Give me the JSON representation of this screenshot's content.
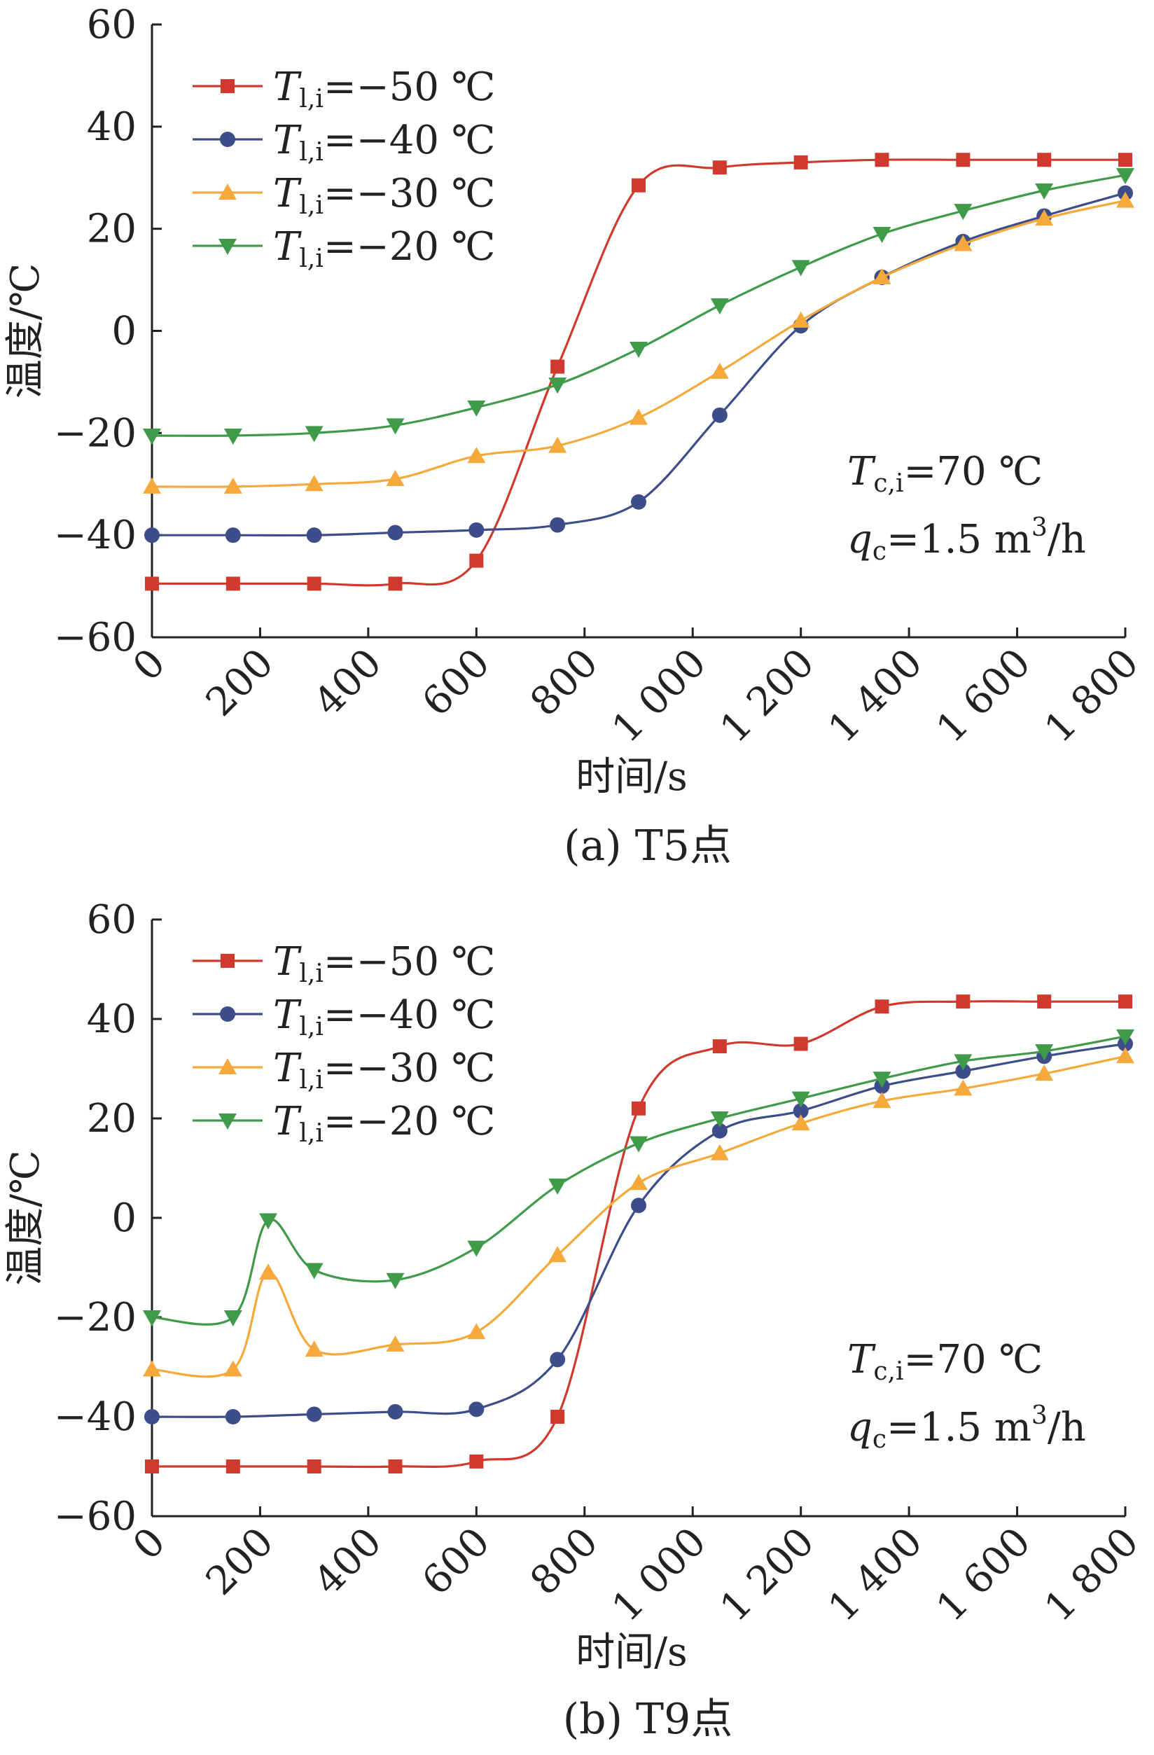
{
  "chart_data": [
    {
      "type": "line",
      "caption": "(a)  T5点",
      "xlabel": "时间/s",
      "ylabel": "温度/℃",
      "xlim": [
        0,
        1800
      ],
      "ylim": [
        -60,
        60
      ],
      "xticks": [
        0,
        200,
        400,
        600,
        800,
        1000,
        1200,
        1400,
        1600,
        1800
      ],
      "xtick_labels": [
        "0",
        "200",
        "400",
        "600",
        "800",
        "1 000",
        "1 200",
        "1 400",
        "1 600",
        "1 800"
      ],
      "yticks": [
        -60,
        -40,
        -20,
        0,
        20,
        40,
        60
      ],
      "ytick_labels": [
        "−60",
        "−40",
        "−20",
        "0",
        "20",
        "40",
        "60"
      ],
      "grid": false,
      "legend_position": "top-left",
      "annotations": [
        {
          "var": "T",
          "sub": "c,i",
          "text": "=70 ℃"
        },
        {
          "var": "q",
          "sub": "c",
          "text": "=1.5 m",
          "sup": "3",
          "tail": "/h"
        }
      ],
      "series": [
        {
          "var": "T",
          "sub": "l,i",
          "name": "=−50 ℃",
          "color": "#d03a2e",
          "marker": "square",
          "x": [
            0,
            150,
            300,
            450,
            600,
            750,
            900,
            1050,
            1200,
            1350,
            1500,
            1650,
            1800
          ],
          "y": [
            -49.5,
            -49.5,
            -49.5,
            -49.5,
            -45,
            -7,
            28.5,
            32,
            33,
            33.5,
            33.5,
            33.5,
            33.5
          ]
        },
        {
          "var": "T",
          "sub": "l,i",
          "name": "=−40 ℃",
          "color": "#3c4d8a",
          "marker": "circle",
          "x": [
            0,
            150,
            300,
            450,
            600,
            750,
            900,
            1050,
            1200,
            1350,
            1500,
            1650,
            1800
          ],
          "y": [
            -40,
            -40,
            -40,
            -39.5,
            -39,
            -38,
            -33.5,
            -16.5,
            1,
            10.5,
            17.5,
            22.5,
            27
          ]
        },
        {
          "var": "T",
          "sub": "l,i",
          "name": "=−30 ℃",
          "color": "#f4a93a",
          "marker": "triangle-up",
          "x": [
            0,
            150,
            300,
            450,
            600,
            750,
            900,
            1050,
            1200,
            1350,
            1500,
            1650,
            1800
          ],
          "y": [
            -30.5,
            -30.5,
            -30,
            -29,
            -24.5,
            -22.5,
            -17,
            -8,
            2,
            10.5,
            17,
            22,
            25.5
          ]
        },
        {
          "var": "T",
          "sub": "l,i",
          "name": "=−20 ℃",
          "color": "#3f9a4a",
          "marker": "triangle-down",
          "x": [
            0,
            150,
            300,
            450,
            600,
            750,
            900,
            1050,
            1200,
            1350,
            1500,
            1650,
            1800
          ],
          "y": [
            -20.5,
            -20.5,
            -20,
            -18.5,
            -15,
            -10.5,
            -3.5,
            5,
            12.5,
            19,
            23.5,
            27.5,
            30.5
          ]
        }
      ]
    },
    {
      "type": "line",
      "caption": "(b)  T9点",
      "xlabel": "时间/s",
      "ylabel": "温度/℃",
      "xlim": [
        0,
        1800
      ],
      "ylim": [
        -60,
        60
      ],
      "xticks": [
        0,
        200,
        400,
        600,
        800,
        1000,
        1200,
        1400,
        1600,
        1800
      ],
      "xtick_labels": [
        "0",
        "200",
        "400",
        "600",
        "800",
        "1 000",
        "1 200",
        "1 400",
        "1 600",
        "1 800"
      ],
      "yticks": [
        -60,
        -40,
        -20,
        0,
        20,
        40,
        60
      ],
      "ytick_labels": [
        "−60",
        "−40",
        "−20",
        "0",
        "20",
        "40",
        "60"
      ],
      "grid": false,
      "legend_position": "top-left",
      "annotations": [
        {
          "var": "T",
          "sub": "c,i",
          "text": "=70 ℃"
        },
        {
          "var": "q",
          "sub": "c",
          "text": "=1.5 m",
          "sup": "3",
          "tail": "/h"
        }
      ],
      "series": [
        {
          "var": "T",
          "sub": "l,i",
          "name": "=−50 ℃",
          "color": "#d03a2e",
          "marker": "square",
          "x": [
            0,
            150,
            300,
            450,
            600,
            750,
            900,
            1050,
            1200,
            1350,
            1500,
            1650,
            1800
          ],
          "y": [
            -50,
            -50,
            -50,
            -50,
            -49,
            -40,
            22,
            34.5,
            35,
            42.5,
            43.5,
            43.5,
            43.5
          ]
        },
        {
          "var": "T",
          "sub": "l,i",
          "name": "=−40 ℃",
          "color": "#3c4d8a",
          "marker": "circle",
          "x": [
            0,
            150,
            300,
            450,
            600,
            750,
            900,
            1050,
            1200,
            1350,
            1500,
            1650,
            1800
          ],
          "y": [
            -40,
            -40,
            -39.5,
            -39,
            -38.5,
            -28.5,
            2.5,
            17.5,
            21.5,
            26.5,
            29.5,
            32.5,
            35
          ]
        },
        {
          "var": "T",
          "sub": "l,i",
          "name": "=−30 ℃",
          "color": "#f4a93a",
          "marker": "triangle-up",
          "x": [
            0,
            150,
            215,
            300,
            450,
            600,
            750,
            900,
            1050,
            1200,
            1350,
            1500,
            1650,
            1800
          ],
          "y": [
            -30.5,
            -30.5,
            -11,
            -26.5,
            -25.5,
            -23,
            -7.5,
            7,
            13,
            19,
            23.5,
            26,
            29,
            32.5
          ]
        },
        {
          "var": "T",
          "sub": "l,i",
          "name": "=−20 ℃",
          "color": "#3f9a4a",
          "marker": "triangle-down",
          "x": [
            0,
            150,
            215,
            300,
            450,
            600,
            750,
            900,
            1050,
            1200,
            1350,
            1500,
            1650,
            1800
          ],
          "y": [
            -20,
            -20,
            -0.5,
            -10.5,
            -12.5,
            -6,
            6.5,
            15,
            20,
            24,
            28,
            31.5,
            33.5,
            36.5
          ]
        }
      ]
    }
  ]
}
